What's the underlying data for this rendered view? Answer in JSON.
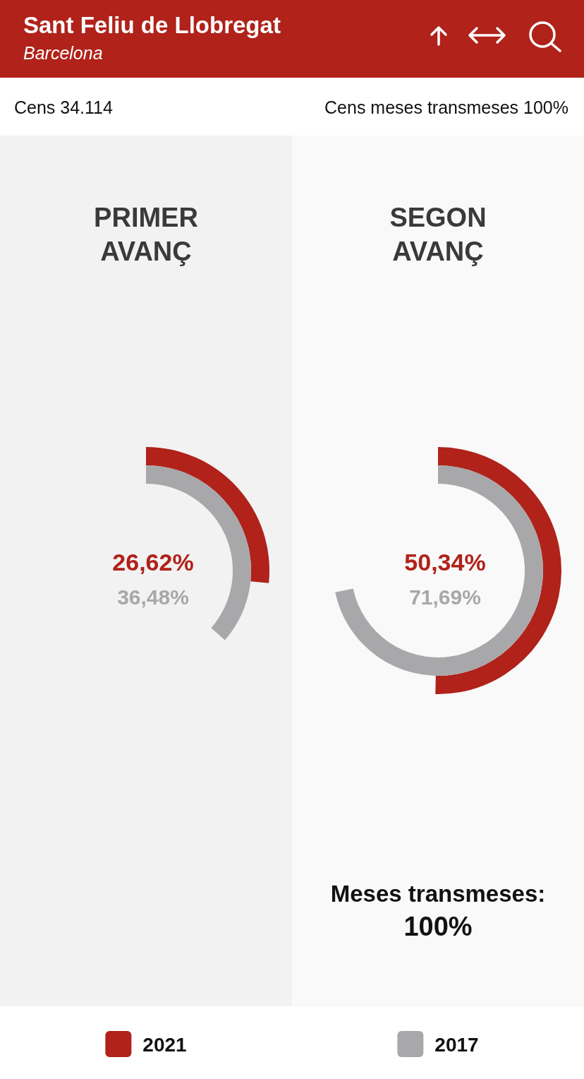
{
  "chart_data": {
    "type": "other",
    "title": "Sant Feliu de Llobregat",
    "subtitle": "Barcelona",
    "categories": [
      "PRIMER AVANÇ",
      "SEGON AVANÇ"
    ],
    "series": [
      {
        "name": "2021",
        "color": "#b0221a",
        "values": [
          26.62,
          50.34
        ],
        "value_labels": [
          "26,62%",
          "50,34%"
        ]
      },
      {
        "name": "2017",
        "color": "#a8a8aa",
        "values": [
          36.48,
          71.69
        ],
        "value_labels": [
          "36,48%",
          "71,69%"
        ]
      }
    ],
    "legend": "bottom",
    "annotations": [
      "Cens 34.114",
      "Cens meses transmeses 100%",
      "Meses transmeses: 100%"
    ]
  }
}
